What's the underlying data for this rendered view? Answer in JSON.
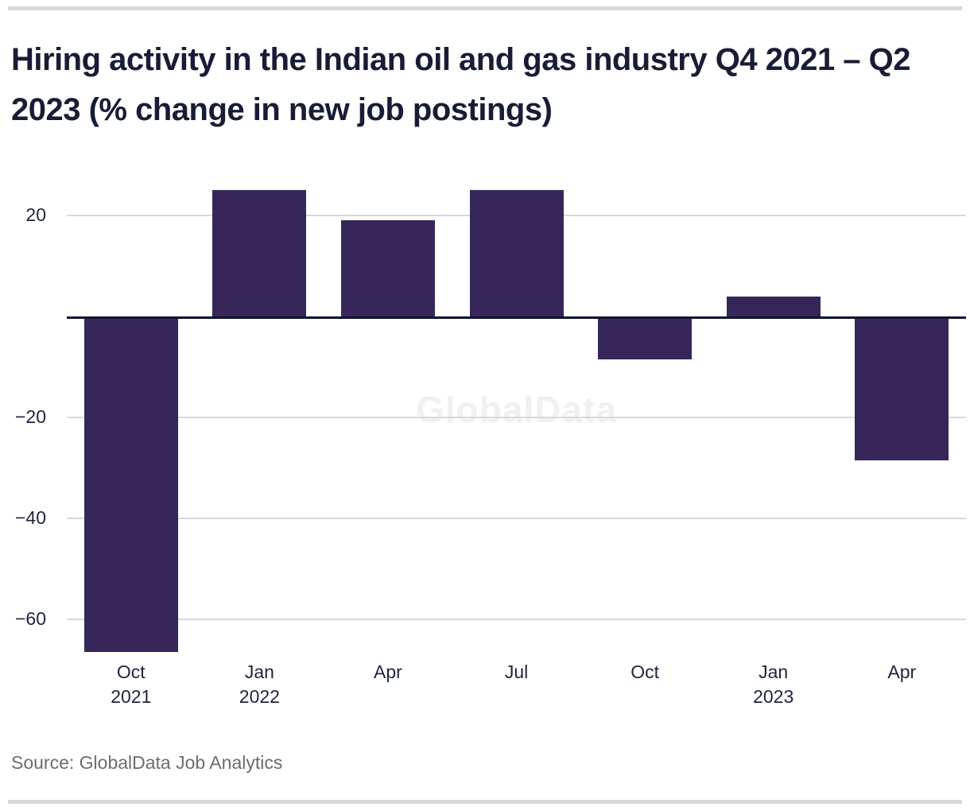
{
  "page": {
    "title": "Hiring activity in the Indian oil and gas industry Q4 2021 – Q2 2023 (% change in new job postings)",
    "source": "Source: GlobalData Job Analytics",
    "watermark": "GlobalData"
  },
  "colors": {
    "bar": "#36265a",
    "title_text": "#181c35",
    "axis_text": "#1e2340",
    "gridline": "#d9d9d9",
    "zero_baseline": "#10142e",
    "horizontal_rule": "#d9d9d9",
    "source_text": "#6d6d6d",
    "watermark_text": "#f0f0f0"
  },
  "chart_data": {
    "type": "bar",
    "title": "Hiring activity in the Indian oil and gas industry Q4 2021 – Q2 2023 (% change in new job postings)",
    "categories": [
      "Oct 2021",
      "Jan 2022",
      "Apr 2022",
      "Jul 2022",
      "Oct 2022",
      "Jan 2023",
      "Apr 2023"
    ],
    "values": [
      -66,
      25,
      19,
      25,
      -8,
      4,
      -28
    ],
    "unit": "% change in new job postings",
    "x_tick_labels": [
      {
        "month": "Oct",
        "year": "2021"
      },
      {
        "month": "Jan",
        "year": "2022"
      },
      {
        "month": "Apr",
        "year": ""
      },
      {
        "month": "Jul",
        "year": ""
      },
      {
        "month": "Oct",
        "year": ""
      },
      {
        "month": "Jan",
        "year": "2023"
      },
      {
        "month": "Apr",
        "year": ""
      }
    ],
    "y_ticks": [
      {
        "value": 20,
        "label": "20"
      },
      {
        "value": -20,
        "label": "−20"
      },
      {
        "value": -40,
        "label": "−40"
      },
      {
        "value": -60,
        "label": "−60"
      }
    ],
    "ylim": [
      -68,
      27
    ],
    "grid": true,
    "legend_position": "none",
    "xlabel": "",
    "ylabel": "",
    "watermark": "GlobalData",
    "source": "Source: GlobalData Job Analytics"
  }
}
